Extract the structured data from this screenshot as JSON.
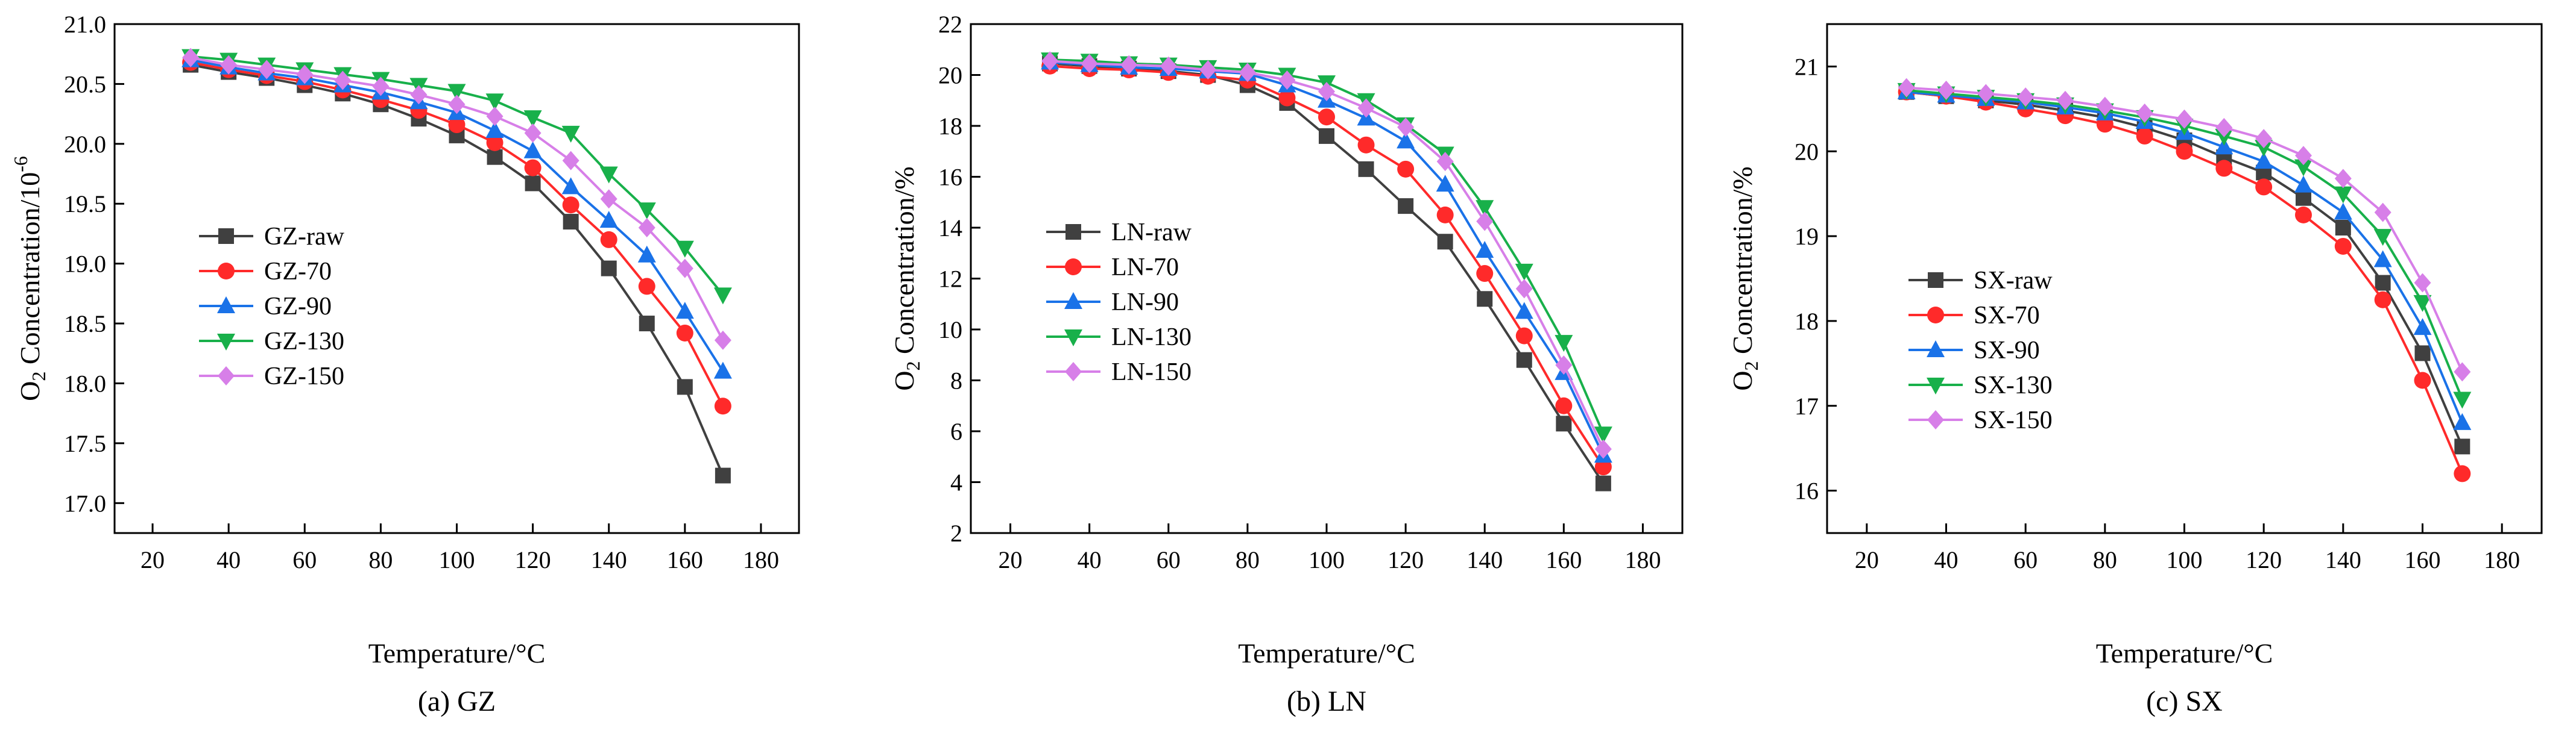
{
  "chart_data": [
    {
      "type": "line",
      "caption": "(a) GZ",
      "xlabel": "Temperature/°C",
      "ylabel": "O",
      "ylabel_sub": "2",
      "ylabel_rest": " Concentration/10",
      "ylabel_sup": "-6",
      "xlim": [
        10,
        190
      ],
      "ylim": [
        16.75,
        21.0
      ],
      "xticks": [
        20,
        40,
        60,
        80,
        100,
        120,
        140,
        160,
        180
      ],
      "yticks": [
        17.0,
        17.5,
        18.0,
        18.5,
        19.0,
        19.5,
        20.0,
        20.5,
        21.0
      ],
      "ytick_labels": [
        "17.0",
        "17.5",
        "18.0",
        "18.5",
        "19.0",
        "19.5",
        "20.0",
        "20.5",
        "21.0"
      ],
      "legend_position": "left-center",
      "x": [
        30,
        40,
        50,
        60,
        70,
        80,
        90,
        100,
        110,
        120,
        130,
        140,
        150,
        160,
        170
      ],
      "series": [
        {
          "name": "GZ-raw",
          "color": "#404040",
          "marker": "square",
          "values": [
            20.66,
            20.6,
            20.55,
            20.49,
            20.42,
            20.33,
            20.21,
            20.07,
            19.89,
            19.67,
            19.35,
            18.96,
            18.5,
            17.97,
            17.23
          ]
        },
        {
          "name": "GZ-70",
          "color": "#ff2a2a",
          "marker": "circle",
          "values": [
            20.68,
            20.62,
            20.57,
            20.52,
            20.45,
            20.37,
            20.28,
            20.16,
            20.01,
            19.8,
            19.49,
            19.2,
            18.81,
            18.42,
            17.81
          ]
        },
        {
          "name": "GZ-90",
          "color": "#1a72e8",
          "marker": "triangle-up",
          "values": [
            20.7,
            20.64,
            20.59,
            20.55,
            20.49,
            20.43,
            20.35,
            20.26,
            20.11,
            19.94,
            19.64,
            19.36,
            19.07,
            18.6,
            18.1
          ]
        },
        {
          "name": "GZ-130",
          "color": "#18b04a",
          "marker": "triangle-down",
          "values": [
            20.73,
            20.7,
            20.66,
            20.62,
            20.58,
            20.54,
            20.49,
            20.44,
            20.36,
            20.22,
            20.09,
            19.75,
            19.45,
            19.13,
            18.74
          ]
        },
        {
          "name": "GZ-150",
          "color": "#d77fe8",
          "marker": "diamond",
          "values": [
            20.72,
            20.66,
            20.62,
            20.58,
            20.53,
            20.48,
            20.41,
            20.33,
            20.23,
            20.09,
            19.86,
            19.54,
            19.3,
            18.96,
            18.36
          ]
        }
      ]
    },
    {
      "type": "line",
      "caption": "(b) LN",
      "xlabel": "Temperature/°C",
      "ylabel": "O",
      "ylabel_sub": "2",
      "ylabel_rest": " Concentration/%",
      "ylabel_sup": "",
      "xlim": [
        10,
        190
      ],
      "ylim": [
        2,
        22
      ],
      "xticks": [
        20,
        40,
        60,
        80,
        100,
        120,
        140,
        160,
        180
      ],
      "yticks": [
        2,
        4,
        6,
        8,
        10,
        12,
        14,
        16,
        18,
        20,
        22
      ],
      "ytick_labels": [
        "2",
        "4",
        "6",
        "8",
        "10",
        "12",
        "14",
        "16",
        "18",
        "20",
        "22"
      ],
      "legend_position": "left-center",
      "x": [
        30,
        40,
        50,
        60,
        70,
        80,
        90,
        100,
        110,
        120,
        130,
        140,
        150,
        160,
        170
      ],
      "series": [
        {
          "name": "LN-raw",
          "color": "#404040",
          "marker": "square",
          "values": [
            20.45,
            20.35,
            20.25,
            20.15,
            20.0,
            19.6,
            18.9,
            17.6,
            16.3,
            14.85,
            13.45,
            11.2,
            8.8,
            6.3,
            3.95
          ]
        },
        {
          "name": "LN-70",
          "color": "#ff2a2a",
          "marker": "circle",
          "values": [
            20.35,
            20.25,
            20.2,
            20.1,
            19.95,
            19.8,
            19.1,
            18.35,
            17.25,
            16.3,
            14.5,
            12.2,
            9.75,
            7.0,
            4.6
          ]
        },
        {
          "name": "LN-90",
          "color": "#1a72e8",
          "marker": "triangle-up",
          "values": [
            20.5,
            20.4,
            20.3,
            20.25,
            20.15,
            20.05,
            19.6,
            19.0,
            18.3,
            17.4,
            15.7,
            13.1,
            10.7,
            8.3,
            5.05
          ]
        },
        {
          "name": "LN-130",
          "color": "#18b04a",
          "marker": "triangle-down",
          "values": [
            20.6,
            20.55,
            20.45,
            20.4,
            20.3,
            20.2,
            20.0,
            19.7,
            19.0,
            18.05,
            16.9,
            14.8,
            12.3,
            9.5,
            5.9
          ]
        },
        {
          "name": "LN-150",
          "color": "#d77fe8",
          "marker": "diamond",
          "values": [
            20.55,
            20.45,
            20.4,
            20.35,
            20.2,
            20.1,
            19.8,
            19.35,
            18.7,
            17.95,
            16.6,
            14.25,
            11.6,
            8.6,
            5.3
          ]
        }
      ]
    },
    {
      "type": "line",
      "caption": "(c) SX",
      "xlabel": "Temperature/°C",
      "ylabel": "O",
      "ylabel_sub": "2",
      "ylabel_rest": " Concentration/%",
      "ylabel_sup": "",
      "xlim": [
        10,
        190
      ],
      "ylim": [
        15.5,
        21.5
      ],
      "xticks": [
        20,
        40,
        60,
        80,
        100,
        120,
        140,
        160,
        180
      ],
      "yticks": [
        16,
        17,
        18,
        19,
        20,
        21
      ],
      "ytick_labels": [
        "16",
        "17",
        "18",
        "19",
        "20",
        "21"
      ],
      "legend_position": "left-center",
      "x": [
        30,
        40,
        50,
        60,
        70,
        80,
        90,
        100,
        110,
        120,
        130,
        140,
        150,
        160,
        170
      ],
      "series": [
        {
          "name": "SX-raw",
          "color": "#404040",
          "marker": "square",
          "values": [
            20.7,
            20.65,
            20.6,
            20.55,
            20.48,
            20.4,
            20.28,
            20.13,
            19.93,
            19.75,
            19.45,
            19.1,
            18.45,
            17.62,
            16.52
          ]
        },
        {
          "name": "SX-70",
          "color": "#ff2a2a",
          "marker": "circle",
          "values": [
            20.7,
            20.65,
            20.58,
            20.5,
            20.42,
            20.32,
            20.18,
            20.0,
            19.8,
            19.58,
            19.25,
            18.88,
            18.25,
            17.3,
            16.2
          ]
        },
        {
          "name": "SX-90",
          "color": "#1a72e8",
          "marker": "triangle-up",
          "values": [
            20.7,
            20.66,
            20.62,
            20.58,
            20.52,
            20.45,
            20.35,
            20.22,
            20.05,
            19.88,
            19.6,
            19.28,
            18.72,
            17.92,
            16.8
          ]
        },
        {
          "name": "SX-130",
          "color": "#18b04a",
          "marker": "triangle-down",
          "values": [
            20.72,
            20.68,
            20.64,
            20.6,
            20.55,
            20.48,
            20.4,
            20.3,
            20.18,
            20.05,
            19.82,
            19.5,
            19.0,
            18.22,
            17.08
          ]
        },
        {
          "name": "SX-150",
          "color": "#d77fe8",
          "marker": "diamond",
          "values": [
            20.75,
            20.72,
            20.68,
            20.64,
            20.6,
            20.53,
            20.45,
            20.38,
            20.28,
            20.15,
            19.95,
            19.68,
            19.28,
            18.45,
            17.4
          ]
        }
      ]
    }
  ]
}
